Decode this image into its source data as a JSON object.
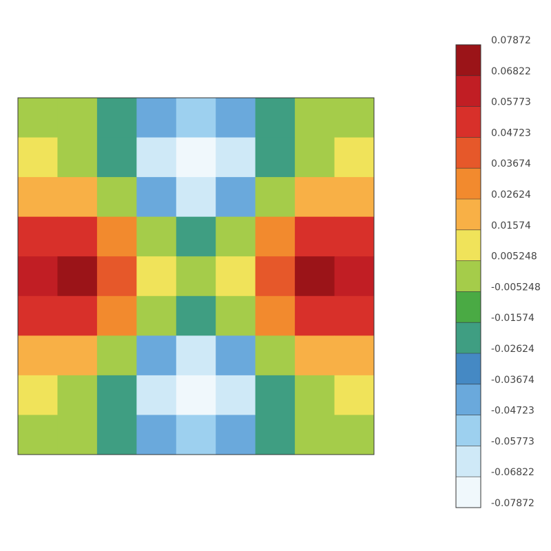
{
  "chart_data": {
    "type": "contour",
    "z": [
      [
        0.003,
        -0.005,
        -0.02,
        -0.045,
        -0.055,
        -0.045,
        -0.02,
        -0.005,
        0.003
      ],
      [
        0.01,
        0.002,
        -0.02,
        -0.06,
        -0.075,
        -0.06,
        -0.02,
        0.002,
        0.01
      ],
      [
        0.025,
        0.02,
        0.0,
        -0.04,
        -0.06,
        -0.04,
        0.0,
        0.02,
        0.025
      ],
      [
        0.05,
        0.055,
        0.03,
        -0.005,
        -0.02,
        -0.005,
        0.03,
        0.055,
        0.05
      ],
      [
        0.06,
        0.075,
        0.045,
        0.01,
        -0.003,
        0.01,
        0.045,
        0.075,
        0.06
      ],
      [
        0.05,
        0.055,
        0.03,
        -0.005,
        -0.02,
        -0.005,
        0.03,
        0.055,
        0.05
      ],
      [
        0.025,
        0.02,
        0.0,
        -0.04,
        -0.06,
        -0.04,
        0.0,
        0.02,
        0.025
      ],
      [
        0.01,
        0.002,
        -0.02,
        -0.06,
        -0.075,
        -0.06,
        -0.02,
        0.002,
        0.01
      ],
      [
        0.003,
        -0.005,
        -0.02,
        -0.045,
        -0.055,
        -0.045,
        -0.02,
        -0.005,
        0.003
      ]
    ],
    "zlim": [
      -0.07872,
      0.07872
    ],
    "colorbar_ticks": [
      -0.07872,
      -0.06822,
      -0.05773,
      -0.04723,
      -0.03674,
      -0.02624,
      -0.01574,
      -0.005248,
      0.005248,
      0.01574,
      0.02624,
      0.03674,
      0.04723,
      0.05773,
      0.06822,
      0.07872
    ],
    "colors": [
      "#f0f8fc",
      "#cfe9f7",
      "#9dd0ef",
      "#6aa9dc",
      "#4589c4",
      "#3f9e82",
      "#4aaa44",
      "#a5cc4a",
      "#f0e35a",
      "#f8b046",
      "#f28a2e",
      "#e6582a",
      "#d8302a",
      "#c11e24",
      "#9b1418"
    ]
  }
}
